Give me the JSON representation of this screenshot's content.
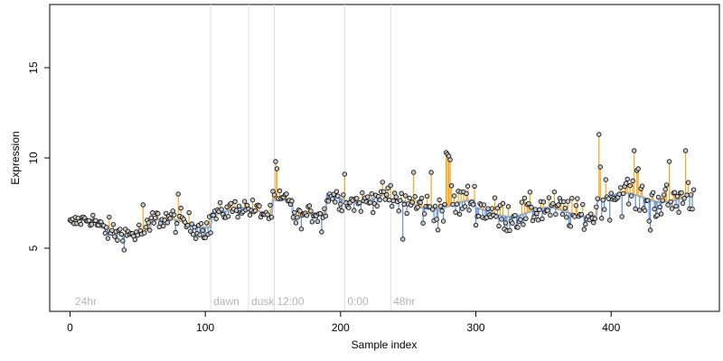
{
  "chart_data": {
    "type": "scatter",
    "xlabel": "Sample index",
    "ylabel": "Expression",
    "xlim": [
      -15,
      480
    ],
    "ylim": [
      1.5,
      18.5
    ],
    "x_ticks": [
      0,
      100,
      200,
      300,
      400
    ],
    "y_ticks": [
      5,
      10,
      15
    ],
    "grid": false,
    "phase_lines": [
      {
        "x": 104,
        "label": "dawn"
      },
      {
        "x": 132,
        "label": "dusk"
      },
      {
        "x": 151,
        "label": "12:00"
      },
      {
        "x": 203,
        "label": "0:00"
      },
      {
        "x": 237,
        "label": "48hr"
      }
    ],
    "start_label": {
      "x": 3,
      "label": "24hr"
    },
    "fit_color": "#9fb8da",
    "residual_above_color": "#f5a623",
    "residual_below_color": "#5b8fd6",
    "point_fill": "#c8c8c8",
    "segments": [
      {
        "x0": 0,
        "x1": 20,
        "mean": 6.35,
        "noise": 0.35
      },
      {
        "x0": 20,
        "x1": 60,
        "mean": 6.0,
        "noise": 0.55
      },
      {
        "x0": 60,
        "x1": 105,
        "mean": 6.4,
        "noise": 0.55
      },
      {
        "x0": 105,
        "x1": 150,
        "mean": 7.0,
        "noise": 0.45
      },
      {
        "x0": 150,
        "x1": 165,
        "mean": 7.9,
        "noise": 0.5
      },
      {
        "x0": 165,
        "x1": 190,
        "mean": 6.7,
        "noise": 0.45
      },
      {
        "x0": 190,
        "x1": 235,
        "mean": 7.8,
        "noise": 0.5
      },
      {
        "x0": 235,
        "x1": 300,
        "mean": 7.4,
        "noise": 0.85
      },
      {
        "x0": 300,
        "x1": 390,
        "mean": 7.0,
        "noise": 0.75
      },
      {
        "x0": 390,
        "x1": 462,
        "mean": 7.8,
        "noise": 0.9
      }
    ],
    "spikes": [
      {
        "x": 152,
        "y": 9.8
      },
      {
        "x": 153,
        "y": 9.4
      },
      {
        "x": 203,
        "y": 9.1
      },
      {
        "x": 254,
        "y": 9.2
      },
      {
        "x": 267,
        "y": 9.2
      },
      {
        "x": 278,
        "y": 10.3
      },
      {
        "x": 279,
        "y": 10.2
      },
      {
        "x": 280,
        "y": 10.1
      },
      {
        "x": 281,
        "y": 9.9
      },
      {
        "x": 391,
        "y": 11.3
      },
      {
        "x": 392,
        "y": 9.5
      },
      {
        "x": 417,
        "y": 10.4
      },
      {
        "x": 420,
        "y": 9.4
      },
      {
        "x": 443,
        "y": 9.8
      },
      {
        "x": 455,
        "y": 10.4
      },
      {
        "x": 80,
        "y": 8.0
      },
      {
        "x": 54,
        "y": 7.4
      },
      {
        "x": 428,
        "y": 6.5
      },
      {
        "x": 429,
        "y": 6.0
      },
      {
        "x": 246,
        "y": 5.5
      },
      {
        "x": 186,
        "y": 5.9
      }
    ]
  }
}
